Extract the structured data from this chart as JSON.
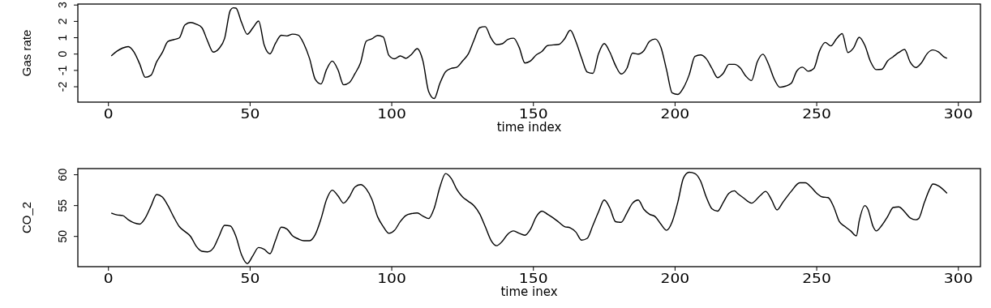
{
  "chart_data": [
    {
      "type": "line",
      "xlabel": "time index",
      "ylabel": "Gas rate",
      "color": "#000000",
      "xlim": [
        -10.8,
        307.8
      ],
      "ylim": [
        -2.94,
        3.06
      ],
      "xticks": [
        0,
        50,
        100,
        150,
        200,
        250,
        300
      ],
      "yticks": [
        -2,
        -1,
        0,
        1,
        2,
        3
      ],
      "x": [
        1,
        3,
        5,
        7,
        9,
        11,
        13,
        15,
        17,
        19,
        21,
        23,
        25,
        27,
        29,
        31,
        33,
        35,
        37,
        39,
        41,
        43,
        44,
        45,
        47,
        49,
        51,
        53,
        55,
        57,
        59,
        61,
        63,
        65,
        67,
        69,
        71,
        73,
        75,
        77,
        79,
        81,
        83,
        85,
        87,
        89,
        91,
        93,
        95,
        97,
        99,
        101,
        103,
        105,
        107,
        109,
        111,
        113,
        115,
        117,
        119,
        121,
        123,
        125,
        127,
        129,
        131,
        133,
        135,
        137,
        139,
        141,
        143,
        145,
        147,
        149,
        151,
        153,
        155,
        157,
        159,
        161,
        163,
        165,
        167,
        169,
        171,
        173,
        175,
        177,
        179,
        181,
        183,
        185,
        187,
        189,
        191,
        193,
        195,
        197,
        199,
        201,
        203,
        205,
        207,
        209,
        211,
        213,
        215,
        217,
        219,
        221,
        223,
        225,
        227,
        229,
        231,
        233,
        235,
        237,
        239,
        241,
        243,
        245,
        247,
        249,
        251,
        253,
        255,
        257,
        259,
        261,
        263,
        265,
        267,
        269,
        271,
        273,
        275,
        277,
        279,
        281,
        283,
        285,
        287,
        289,
        291,
        293,
        295,
        296
      ],
      "values": [
        -0.11,
        0.18,
        0.37,
        0.46,
        0.13,
        -0.59,
        -1.42,
        -1.3,
        -0.48,
        0.09,
        0.77,
        0.88,
        0.99,
        1.78,
        1.93,
        1.83,
        1.61,
        0.79,
        0.12,
        0.33,
        0.96,
        2.67,
        2.83,
        2.81,
        1.93,
        1.21,
        1.61,
        2.02,
        0.54,
        0.01,
        0.67,
        1.15,
        1.11,
        1.22,
        1.16,
        0.62,
        -0.28,
        -1.55,
        -1.83,
        -0.94,
        -0.43,
        -0.96,
        -1.88,
        -1.75,
        -1.2,
        -0.52,
        0.79,
        0.93,
        1.14,
        1.05,
        -0.08,
        -0.29,
        -0.11,
        -0.26,
        -0.01,
        0.33,
        -0.42,
        -2.28,
        -2.72,
        -1.79,
        -1.08,
        -0.88,
        -0.8,
        -0.42,
        0,
        0.84,
        1.61,
        1.68,
        0.99,
        0.58,
        0.63,
        0.9,
        0.97,
        0.4,
        -0.55,
        -0.42,
        -0.05,
        0.16,
        0.52,
        0.56,
        0.59,
        0.93,
        1.46,
        0.77,
        -0.24,
        -1.1,
        -1.18,
        0.03,
        0.64,
        0.11,
        -0.7,
        -1.22,
        -0.87,
        0.06,
        0,
        0.21,
        0.78,
        0.92,
        0.42,
        -0.96,
        -2.38,
        -2.47,
        -2.05,
        -1.26,
        -0.14,
        -0.05,
        -0.28,
        -0.87,
        -1.44,
        -1.18,
        -0.63,
        -0.63,
        -0.85,
        -1.35,
        -1.62,
        -0.49,
        -0.01,
        -0.62,
        -1.53,
        -2.03,
        -1.96,
        -1.79,
        -1.03,
        -0.8,
        -1.05,
        -0.88,
        0.19,
        0.71,
        0.5,
        0.94,
        1.25,
        0.1,
        0.38,
        1.03,
        0.53,
        -0.46,
        -0.95,
        -0.93,
        -0.42,
        -0.16,
        0.1,
        0.28,
        -0.49,
        -0.82,
        -0.53,
        0.03,
        0.25,
        0.13,
        -0.18,
        -0.26
      ]
    },
    {
      "type": "line",
      "xlabel": "time inex",
      "ylabel": "CO_2",
      "color": "#000000",
      "xlim": [
        -10.8,
        307.8
      ],
      "ylim": [
        45.1,
        61.0
      ],
      "xticks": [
        0,
        50,
        100,
        150,
        200,
        250,
        300
      ],
      "yticks": [
        50,
        55,
        60
      ],
      "x": [
        1,
        3,
        5,
        7,
        9,
        11,
        13,
        15,
        17,
        19,
        21,
        23,
        25,
        27,
        29,
        31,
        33,
        35,
        37,
        39,
        41,
        43,
        45,
        47,
        49,
        51,
        53,
        55,
        57,
        59,
        61,
        63,
        65,
        67,
        69,
        71,
        73,
        75,
        77,
        79,
        81,
        83,
        85,
        87,
        89,
        91,
        93,
        95,
        97,
        99,
        101,
        103,
        105,
        107,
        109,
        111,
        113,
        115,
        117,
        119,
        121,
        123,
        125,
        127,
        129,
        131,
        133,
        135,
        137,
        139,
        141,
        143,
        145,
        147,
        149,
        151,
        153,
        155,
        157,
        159,
        161,
        163,
        165,
        167,
        169,
        171,
        173,
        175,
        177,
        179,
        181,
        183,
        185,
        187,
        189,
        191,
        193,
        195,
        197,
        199,
        201,
        203,
        205,
        207,
        209,
        211,
        213,
        215,
        217,
        219,
        221,
        222,
        224,
        227,
        230,
        232,
        234,
        236,
        238,
        241,
        244,
        246,
        248,
        250,
        252,
        254,
        256,
        258,
        260,
        262,
        264,
        265,
        267,
        268,
        270,
        271,
        273,
        275,
        277,
        279,
        281,
        283,
        285,
        286,
        288,
        290,
        291,
        293,
        296
      ],
      "values": [
        53.8,
        53.5,
        53.4,
        52.7,
        52.2,
        52.0,
        53.0,
        54.9,
        56.8,
        56.4,
        55.0,
        53.2,
        51.6,
        50.8,
        50.0,
        48.4,
        47.6,
        47.5,
        48.1,
        50.0,
        51.8,
        51.7,
        50.0,
        47.0,
        45.6,
        46.9,
        48.2,
        47.9,
        47.2,
        49.4,
        51.5,
        51.2,
        50.1,
        49.6,
        49.3,
        49.3,
        50.3,
        52.8,
        56.0,
        57.5,
        56.6,
        55.4,
        56.4,
        58.0,
        58.4,
        57.7,
        56.0,
        53.2,
        51.6,
        50.5,
        51.0,
        52.4,
        53.4,
        53.7,
        53.8,
        53.3,
        52.9,
        54.6,
        58.0,
        60.2,
        59.4,
        57.6,
        56.4,
        55.7,
        55.0,
        53.7,
        51.6,
        49.4,
        48.5,
        49.2,
        50.4,
        50.9,
        50.5,
        50.2,
        51.2,
        53.2,
        54.1,
        53.6,
        53.0,
        52.3,
        51.6,
        51.4,
        50.7,
        49.4,
        49.7,
        51.8,
        54.0,
        55.9,
        54.6,
        52.4,
        52.3,
        53.8,
        55.4,
        55.9,
        54.4,
        53.6,
        53.2,
        52.0,
        51.0,
        52.4,
        55.6,
        59.5,
        60.4,
        60.2,
        59.0,
        56.4,
        54.5,
        54.1,
        55.5,
        57.0,
        57.4,
        57.0,
        56.3,
        55.4,
        56.6,
        57.3,
        56.0,
        54.3,
        55.5,
        57.3,
        58.7,
        58.7,
        58.0,
        57.0,
        56.4,
        56.3,
        54.8,
        52.4,
        51.6,
        50.9,
        50.1,
        52.5,
        55.0,
        54.5,
        51.5,
        50.9,
        51.8,
        53.2,
        54.7,
        54.8,
        54.0,
        53.0,
        52.7,
        52.9,
        55.5,
        57.8,
        58.5,
        58.2,
        57.0
      ]
    }
  ]
}
